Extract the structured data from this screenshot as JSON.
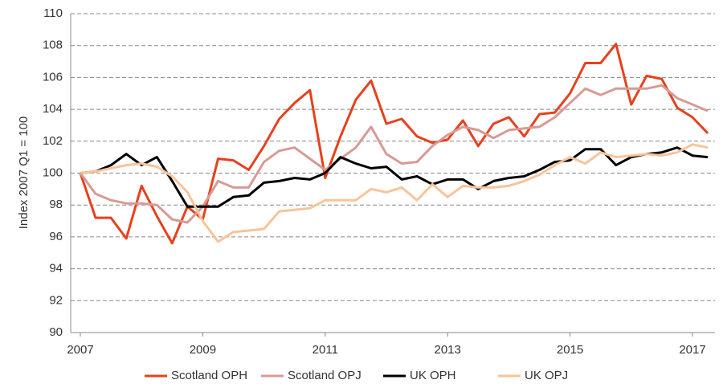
{
  "chart_data": {
    "type": "line",
    "ylabel": "Index 2007 Q1 = 100",
    "categories": [
      "2007",
      null,
      null,
      null,
      null,
      null,
      null,
      null,
      "2009",
      null,
      null,
      null,
      null,
      null,
      null,
      null,
      "2011",
      null,
      null,
      null,
      null,
      null,
      null,
      null,
      "2013",
      null,
      null,
      null,
      null,
      null,
      null,
      null,
      "2015",
      null,
      null,
      null,
      null,
      null,
      null,
      null,
      "2017",
      null
    ],
    "series": [
      {
        "name": "Scotland OPH",
        "color": "#e8401c",
        "values": [
          100,
          97.2,
          97.2,
          95.9,
          99.2,
          97.3,
          95.6,
          97.9,
          97.1,
          100.9,
          100.8,
          100.2,
          101.7,
          103.4,
          104.4,
          105.2,
          99.7,
          102.3,
          104.6,
          105.8,
          103.1,
          103.4,
          102.3,
          101.9,
          102.1,
          103.3,
          101.7,
          103.1,
          103.5,
          102.3,
          103.7,
          103.8,
          105.0,
          106.9,
          106.9,
          108.1,
          104.3,
          106.1,
          105.9,
          104.1,
          103.5,
          102.5
        ]
      },
      {
        "name": "Scotland OPJ",
        "color": "#d89a94",
        "values": [
          100,
          98.7,
          98.3,
          98.1,
          98.1,
          98.0,
          97.1,
          96.9,
          97.9,
          99.5,
          99.1,
          99.1,
          100.7,
          101.4,
          101.6,
          100.9,
          100.2,
          100.9,
          101.6,
          102.9,
          101.2,
          100.6,
          100.7,
          101.7,
          102.4,
          102.9,
          102.7,
          102.2,
          102.7,
          102.8,
          102.9,
          103.5,
          104.4,
          105.3,
          104.9,
          105.3,
          105.3,
          105.3,
          105.5,
          104.7,
          104.3,
          103.9
        ]
      },
      {
        "name": "UK OPH",
        "color": "#000000",
        "values": [
          100,
          100.1,
          100.5,
          101.2,
          100.5,
          101.0,
          99.5,
          97.9,
          97.9,
          97.9,
          98.5,
          98.6,
          99.4,
          99.5,
          99.7,
          99.6,
          100.0,
          101.0,
          100.6,
          100.3,
          100.4,
          99.6,
          99.8,
          99.3,
          99.6,
          99.6,
          99.0,
          99.5,
          99.7,
          99.8,
          100.2,
          100.7,
          100.8,
          101.5,
          101.5,
          100.5,
          101.0,
          101.2,
          101.3,
          101.6,
          101.1,
          101.0
        ]
      },
      {
        "name": "UK OPJ",
        "color": "#f8c49a",
        "values": [
          100,
          100.1,
          100.3,
          100.5,
          100.6,
          100.4,
          99.8,
          98.8,
          97.0,
          95.7,
          96.3,
          96.4,
          96.5,
          97.6,
          97.7,
          97.8,
          98.3,
          98.3,
          98.3,
          99.0,
          98.8,
          99.1,
          98.3,
          99.3,
          98.5,
          99.2,
          99.1,
          99.1,
          99.2,
          99.5,
          99.9,
          100.5,
          101.0,
          100.6,
          101.3,
          101.0,
          101.1,
          101.2,
          101.1,
          101.3,
          101.8,
          101.6
        ]
      }
    ],
    "ylim": [
      90,
      110
    ],
    "yticks": [
      90,
      92,
      94,
      96,
      98,
      100,
      102,
      104,
      106,
      108,
      110
    ],
    "grid": true,
    "legend": "bottom"
  }
}
